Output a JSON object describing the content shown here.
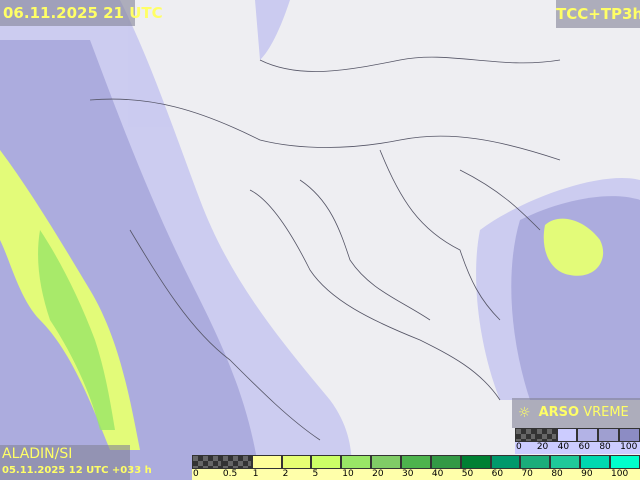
{
  "header": {
    "valid_time": "06.11.2025 21 UTC",
    "product": "TCC+TP3h"
  },
  "model": {
    "name": "ALADIN/SI",
    "run": "05.11.2025 12 UTC +033 h"
  },
  "logo": {
    "icon": "sun-cloud-icon",
    "bold": "ARSO",
    "rest": " VREME"
  },
  "cloud_legend": {
    "labels": [
      "0",
      "20",
      "40",
      "60",
      "80",
      "100"
    ],
    "colors": [
      "checker",
      "checker",
      "#ccccff",
      "#b3b3e6",
      "#9f9fd0",
      "#8c8cc4"
    ]
  },
  "precip_legend": {
    "labels": [
      "0",
      "0.5",
      "1",
      "2",
      "5",
      "10",
      "20",
      "30",
      "40",
      "50",
      "60",
      "70",
      "80",
      "90",
      "100"
    ],
    "colors": [
      "checker",
      "checker",
      "#ffff99",
      "#e6ff73",
      "#ccff66",
      "#99e666",
      "#80cc66",
      "#4db34d",
      "#339945",
      "#008033",
      "#00996b",
      "#1aad7a",
      "#1fc999",
      "#00d9b0",
      "#00ffcc"
    ]
  }
}
